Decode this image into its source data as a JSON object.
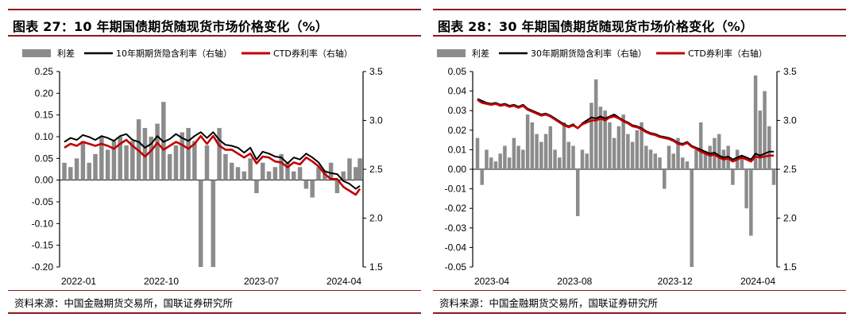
{
  "source_text": "资料来源：中国金融期货交易所，国联证券研究所",
  "colors": {
    "spread": "#8c8c8c",
    "implied": "#000000",
    "ctd": "#c00000",
    "frame": "#8e1a1c"
  },
  "chart_data": [
    {
      "type": "bar",
      "title": "图表 27：10 年期国债期货随现货市场价格变化（%）",
      "legend": [
        "利差",
        "10年期期货隐含利率（右轴）",
        "CTD券利率（右轴）"
      ],
      "x_ticks": [
        "2022-01",
        "2022-10",
        "2023-07",
        "2024-04"
      ],
      "x_range": [
        "2022-01",
        "2024-05"
      ],
      "left_axis": {
        "ylim": [
          -0.2,
          0.25
        ],
        "ticks": [
          "0.25",
          "0.20",
          "0.15",
          "0.10",
          "0.05",
          "0.00",
          "-0.05",
          "-0.10",
          "-0.15",
          "-0.20"
        ]
      },
      "right_axis": {
        "ylim": [
          1.5,
          3.5
        ],
        "ticks": [
          "3.5",
          "3.0",
          "2.5",
          "2.0",
          "1.5"
        ]
      },
      "series": [
        {
          "name": "利差",
          "type": "bar",
          "axis": "left",
          "x": [
            0,
            6,
            12,
            18,
            24,
            30,
            36,
            42,
            48,
            54,
            60,
            66,
            72,
            78,
            84,
            90,
            96,
            102,
            108,
            114,
            120,
            126,
            132,
            138,
            144,
            150,
            156,
            162,
            168,
            174,
            180,
            186,
            192,
            198,
            204,
            210,
            216,
            222,
            228,
            234,
            240,
            246,
            252,
            258,
            264,
            270,
            276,
            282,
            286
          ],
          "values": [
            0.04,
            0.03,
            0.05,
            0.09,
            0.04,
            0.06,
            0.1,
            0.07,
            0.09,
            0.1,
            0.08,
            0.09,
            0.14,
            0.12,
            0.1,
            0.13,
            0.18,
            0.06,
            0.08,
            0.11,
            0.12,
            0.09,
            -0.2,
            0.08,
            -0.2,
            0.12,
            0.06,
            0.04,
            0.03,
            0.02,
            0.05,
            -0.03,
            0.04,
            0.02,
            0.03,
            0.06,
            0.04,
            0.02,
            0.03,
            -0.02,
            -0.04,
            0.03,
            0.02,
            0.04,
            -0.03,
            0.02,
            0.05,
            0.03,
            0.05
          ]
        },
        {
          "name": "10年期期货隐含利率（右轴）",
          "type": "line",
          "axis": "right",
          "x": [
            0,
            6,
            12,
            18,
            24,
            30,
            36,
            42,
            48,
            54,
            60,
            66,
            72,
            78,
            84,
            90,
            96,
            102,
            108,
            114,
            120,
            126,
            132,
            138,
            144,
            150,
            156,
            162,
            168,
            174,
            180,
            186,
            192,
            198,
            204,
            210,
            216,
            222,
            228,
            234,
            240,
            246,
            252,
            258,
            264,
            270,
            276,
            282,
            286
          ],
          "values": [
            2.78,
            2.82,
            2.8,
            2.85,
            2.83,
            2.8,
            2.84,
            2.82,
            2.79,
            2.84,
            2.86,
            2.8,
            2.78,
            2.72,
            2.76,
            2.84,
            2.78,
            2.81,
            2.86,
            2.82,
            2.79,
            2.84,
            2.88,
            2.82,
            2.88,
            2.8,
            2.75,
            2.74,
            2.72,
            2.67,
            2.72,
            2.6,
            2.68,
            2.66,
            2.63,
            2.62,
            2.56,
            2.62,
            2.6,
            2.66,
            2.62,
            2.57,
            2.48,
            2.46,
            2.45,
            2.38,
            2.35,
            2.3,
            2.33
          ]
        },
        {
          "name": "CTD券利率（右轴）",
          "type": "line",
          "axis": "right",
          "x": [
            0,
            6,
            12,
            18,
            24,
            30,
            36,
            42,
            48,
            54,
            60,
            66,
            72,
            78,
            84,
            90,
            96,
            102,
            108,
            114,
            120,
            126,
            132,
            138,
            144,
            150,
            156,
            162,
            168,
            174,
            180,
            186,
            192,
            198,
            204,
            210,
            216,
            222,
            228,
            234,
            240,
            246,
            252,
            258,
            264,
            270,
            276,
            282,
            286
          ],
          "values": [
            2.72,
            2.76,
            2.74,
            2.78,
            2.76,
            2.74,
            2.76,
            2.74,
            2.71,
            2.76,
            2.8,
            2.74,
            2.69,
            2.63,
            2.69,
            2.77,
            2.7,
            2.74,
            2.78,
            2.75,
            2.71,
            2.76,
            2.84,
            2.76,
            2.84,
            2.74,
            2.7,
            2.7,
            2.66,
            2.62,
            2.66,
            2.56,
            2.63,
            2.62,
            2.58,
            2.57,
            2.52,
            2.57,
            2.55,
            2.62,
            2.58,
            2.53,
            2.45,
            2.4,
            2.4,
            2.32,
            2.28,
            2.24,
            2.3
          ]
        }
      ]
    },
    {
      "type": "bar",
      "title": "图表 28：30 年期国债期货随现货市场价格变化（%）",
      "legend": [
        "利差",
        "30年期期货隐含利率（右轴）",
        "CTD券利率（右轴）"
      ],
      "x_ticks": [
        "2023-04",
        "2023-08",
        "2023-12",
        "2024-04"
      ],
      "x_range": [
        "2023-04",
        "2024-05"
      ],
      "left_axis": {
        "ylim": [
          -0.05,
          0.05
        ],
        "ticks": [
          "0.05",
          "0.04",
          "0.03",
          "0.02",
          "0.01",
          "0.00",
          "-0.01",
          "-0.02",
          "-0.03",
          "-0.04",
          "-0.05"
        ]
      },
      "right_axis": {
        "ylim": [
          1.5,
          3.5
        ],
        "ticks": [
          "3.5",
          "3.0",
          "2.5",
          "2.0",
          "1.5"
        ]
      },
      "series": [
        {
          "name": "利差",
          "type": "bar",
          "axis": "left",
          "x": [
            0,
            4,
            8,
            12,
            16,
            20,
            24,
            28,
            32,
            36,
            40,
            44,
            48,
            52,
            56,
            60,
            64,
            68,
            72,
            76,
            80,
            84,
            88,
            92,
            96,
            100,
            104,
            108,
            112,
            116,
            120,
            124,
            128,
            132,
            136,
            140,
            144,
            148,
            152,
            156,
            160,
            164,
            168,
            172,
            176,
            180,
            184,
            188,
            192,
            196,
            200,
            204,
            208,
            212,
            216,
            220,
            224,
            228,
            232,
            236,
            240,
            244,
            248,
            252,
            256,
            260
          ],
          "values": [
            0.016,
            -0.008,
            0.01,
            0.006,
            0.004,
            0.008,
            0.012,
            0.006,
            0.016,
            0.012,
            0.01,
            0.028,
            0.024,
            0.018,
            0.014,
            0.018,
            0.022,
            0.01,
            0.006,
            0.024,
            0.014,
            0.012,
            -0.024,
            0.01,
            0.008,
            0.034,
            0.046,
            0.032,
            0.03,
            0.024,
            0.016,
            0.022,
            0.028,
            0.018,
            0.014,
            0.02,
            0.024,
            0.012,
            0.01,
            0.008,
            0.006,
            -0.01,
            0.012,
            0.008,
            0.016,
            0.006,
            0.004,
            -0.05,
            0.01,
            0.024,
            0.008,
            0.012,
            0.016,
            0.018,
            0.01,
            0.012,
            -0.008,
            0.01,
            0.006,
            -0.02,
            -0.034,
            0.048,
            0.03,
            0.04,
            0.022,
            -0.008
          ]
        },
        {
          "name": "30年期期货隐含利率（右轴）",
          "type": "line",
          "axis": "right",
          "x": [
            0,
            4,
            8,
            12,
            16,
            20,
            24,
            28,
            32,
            36,
            40,
            44,
            48,
            52,
            56,
            60,
            64,
            68,
            72,
            76,
            80,
            84,
            88,
            92,
            96,
            100,
            104,
            108,
            112,
            116,
            120,
            124,
            128,
            132,
            136,
            140,
            144,
            148,
            152,
            156,
            160,
            164,
            168,
            172,
            176,
            180,
            184,
            188,
            192,
            196,
            200,
            204,
            208,
            212,
            216,
            220,
            224,
            228,
            232,
            236,
            240,
            244,
            248,
            252,
            256,
            260
          ],
          "values": [
            3.22,
            3.2,
            3.18,
            3.17,
            3.18,
            3.16,
            3.17,
            3.15,
            3.16,
            3.14,
            3.16,
            3.12,
            3.1,
            3.08,
            3.06,
            3.07,
            3.05,
            3.02,
            2.99,
            2.96,
            2.94,
            2.96,
            2.92,
            2.97,
            3.0,
            3.03,
            3.02,
            3.04,
            3.02,
            3.04,
            3.06,
            3.03,
            3.0,
            2.98,
            2.95,
            2.94,
            2.92,
            2.89,
            2.87,
            2.86,
            2.84,
            2.83,
            2.82,
            2.8,
            2.77,
            2.76,
            2.78,
            2.74,
            2.72,
            2.7,
            2.68,
            2.66,
            2.67,
            2.64,
            2.62,
            2.63,
            2.6,
            2.62,
            2.64,
            2.62,
            2.6,
            2.66,
            2.64,
            2.66,
            2.68,
            2.68
          ]
        },
        {
          "name": "CTD券利率（右轴）",
          "type": "line",
          "axis": "right",
          "x": [
            0,
            4,
            8,
            12,
            16,
            20,
            24,
            28,
            32,
            36,
            40,
            44,
            48,
            52,
            56,
            60,
            64,
            68,
            72,
            76,
            80,
            84,
            88,
            92,
            96,
            100,
            104,
            108,
            112,
            116,
            120,
            124,
            128,
            132,
            136,
            140,
            144,
            148,
            152,
            156,
            160,
            164,
            168,
            172,
            176,
            180,
            184,
            188,
            192,
            196,
            200,
            204,
            208,
            212,
            216,
            220,
            224,
            228,
            232,
            236,
            240,
            244,
            248,
            252,
            256,
            260
          ],
          "values": [
            3.21,
            3.18,
            3.17,
            3.16,
            3.17,
            3.15,
            3.16,
            3.14,
            3.15,
            3.13,
            3.15,
            3.11,
            3.09,
            3.07,
            3.05,
            3.06,
            3.04,
            3.01,
            2.98,
            2.95,
            2.93,
            2.95,
            2.92,
            2.96,
            2.98,
            3.0,
            3.0,
            3.02,
            3.0,
            3.03,
            3.04,
            3.02,
            2.99,
            2.97,
            2.94,
            2.93,
            2.91,
            2.88,
            2.86,
            2.85,
            2.83,
            2.82,
            2.81,
            2.79,
            2.76,
            2.75,
            2.77,
            2.73,
            2.71,
            2.68,
            2.66,
            2.64,
            2.65,
            2.62,
            2.6,
            2.61,
            2.58,
            2.6,
            2.62,
            2.6,
            2.58,
            2.63,
            2.62,
            2.63,
            2.64,
            2.64
          ]
        }
      ]
    }
  ]
}
